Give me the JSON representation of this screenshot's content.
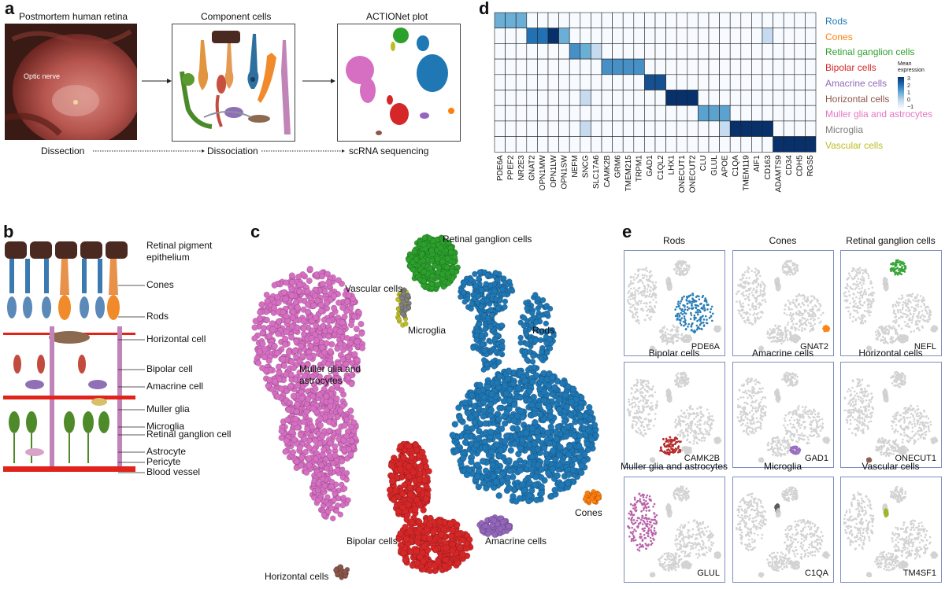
{
  "panel_a": {
    "letter": "a",
    "step1_title": "Postmortem human retina",
    "step2_title": "Component cells",
    "step3_title": "ACTIONet plot",
    "optic_nerve_label": "Optic nerve",
    "step1_caption": "Dissection",
    "step2_caption": "Dissociation",
    "step3_caption": "scRNA sequencing"
  },
  "panel_b": {
    "letter": "b",
    "labels": [
      "Retinal pigment epithelium",
      "Cones",
      "Rods",
      "Horizontal cell",
      "Bipolar cell",
      "Amacrine cell",
      "Muller glia",
      "Microglia",
      "Retinal ganglion cell",
      "Astrocyte",
      "Pericyte",
      "Blood vessel"
    ]
  },
  "panel_c": {
    "letter": "c",
    "clusters": [
      {
        "name": "Retinal ganglion cells",
        "color": "#2ca02c"
      },
      {
        "name": "Vascular cells",
        "color": "#bcbd22"
      },
      {
        "name": "Microglia",
        "color": "#7f7f7f"
      },
      {
        "name": "Rods",
        "color": "#1f77b4"
      },
      {
        "name": "Muller glia and astrocytes",
        "color": "#d66ec2"
      },
      {
        "name": "Cones",
        "color": "#ff7f0e"
      },
      {
        "name": "Bipolar cells",
        "color": "#d62728"
      },
      {
        "name": "Amacrine cells",
        "color": "#9467bd"
      },
      {
        "name": "Horizontal cells",
        "color": "#8c564b"
      }
    ]
  },
  "panel_d": {
    "letter": "d",
    "legend_title": "Mean expression",
    "legend_ticks": [
      "3",
      "2",
      "1",
      "0",
      "−1"
    ]
  },
  "panel_e": {
    "letter": "e",
    "panels": [
      {
        "title": "Rods",
        "gene": "PDE6A",
        "color": "#1f77b4"
      },
      {
        "title": "Cones",
        "gene": "GNAT2",
        "color": "#ff7f0e"
      },
      {
        "title": "Retinal ganglion cells",
        "gene": "NEFL",
        "color": "#2ca02c"
      },
      {
        "title": "Bipolar cells",
        "gene": "CAMK2B",
        "color": "#b22222"
      },
      {
        "title": "Amacrine cells",
        "gene": "GAD1",
        "color": "#9467bd"
      },
      {
        "title": "Horizontal cells",
        "gene": "ONECUT1",
        "color": "#8c564b"
      },
      {
        "title": "Muller glia and astrocytes",
        "gene": "GLUL",
        "color": "#b65aa5"
      },
      {
        "title": "Microglia",
        "gene": "C1QA",
        "color": "#555555"
      },
      {
        "title": "Vascular cells",
        "gene": "TM4SF1",
        "color": "#9ab51f"
      }
    ]
  },
  "chart_data": {
    "type": "heatmap",
    "genes": [
      "PDE6A",
      "PPEF2",
      "NR2E3",
      "GNAT2",
      "OPN1MW",
      "OPN1LW",
      "OPN1SW",
      "NEFM",
      "SNCG",
      "SLC17A6",
      "CAMK2B",
      "GRM6",
      "TMEM215",
      "TRPM1",
      "GAD1",
      "C1QL2",
      "LHX1",
      "ONECUT1",
      "ONECUT2",
      "CLU",
      "GLUL",
      "APOE",
      "C1QA",
      "TMEM119",
      "AIF1",
      "CD163",
      "ADAMTS9",
      "CD34",
      "CDH5",
      "RGS5"
    ],
    "cell_types": [
      {
        "name": "Rods",
        "color": "#1f77b4"
      },
      {
        "name": "Cones",
        "color": "#ff7f0e"
      },
      {
        "name": "Retinal ganglion cells",
        "color": "#2ca02c"
      },
      {
        "name": "Bipolar cells",
        "color": "#d62728"
      },
      {
        "name": "Amacrine cells",
        "color": "#9467bd"
      },
      {
        "name": "Horizontal cells",
        "color": "#8c564b"
      },
      {
        "name": "Muller glia and astrocytes",
        "color": "#e377c2"
      },
      {
        "name": "Microglia",
        "color": "#7f7f7f"
      },
      {
        "name": "Vascular cells",
        "color": "#bcbd22"
      }
    ],
    "values": [
      [
        1,
        1,
        1,
        -1,
        -1,
        -1,
        -1,
        -1,
        -1,
        -1,
        -1,
        -1,
        -1,
        -1,
        -1,
        -1,
        -1,
        -1,
        -1,
        -1,
        -1,
        -1,
        -1,
        -1,
        -1,
        -1,
        -1,
        -1,
        -1,
        -1
      ],
      [
        -1,
        -1,
        -1,
        2,
        2,
        3,
        1,
        -1,
        -1,
        -1,
        -1,
        -1,
        -1,
        -1,
        -1,
        -1,
        -1,
        -1,
        -1,
        -1,
        -1,
        -1,
        -1,
        -1,
        -1,
        0,
        -1,
        -1,
        -1,
        -1
      ],
      [
        -1,
        -1,
        -1,
        -1,
        -1,
        -1,
        -1,
        1.5,
        1,
        0,
        -1,
        -1,
        -1,
        -1,
        -1,
        -1,
        -1,
        -1,
        -1,
        -1,
        -1,
        -1,
        -1,
        -1,
        -1,
        -1,
        -1,
        -1,
        -1,
        -1
      ],
      [
        -1,
        -1,
        -1,
        -1,
        -1,
        -1,
        -1,
        -1,
        -1,
        -1,
        1.5,
        1.5,
        1.5,
        1.5,
        -1,
        -1,
        -1,
        -1,
        -1,
        -1,
        -1,
        -1,
        -1,
        -1,
        -1,
        -1,
        -1,
        -1,
        -1,
        -1
      ],
      [
        -1,
        -1,
        -1,
        -1,
        -1,
        -1,
        -1,
        -1,
        -1,
        -1,
        -1,
        -1,
        -1,
        -1,
        2.5,
        2.5,
        -1,
        -1,
        -1,
        -1,
        -1,
        -1,
        -1,
        -1,
        -1,
        -1,
        -1,
        -1,
        -1,
        -1
      ],
      [
        -1,
        -1,
        -1,
        -1,
        -1,
        -1,
        -1,
        -1,
        0,
        -1,
        -1,
        -1,
        -1,
        -1,
        -1,
        -1,
        3,
        3,
        3,
        -1,
        -1,
        -1,
        -1,
        -1,
        -1,
        -1,
        -1,
        -1,
        -1,
        -1
      ],
      [
        -1,
        -1,
        -1,
        -1,
        -1,
        -1,
        -1,
        -1,
        -1,
        -1,
        -1,
        -1,
        -1,
        -1,
        -1,
        -1,
        -1,
        -1,
        -1,
        1.2,
        1.2,
        1.2,
        -1,
        -1,
        -1,
        -1,
        -1,
        -1,
        -1,
        -1
      ],
      [
        -1,
        -1,
        -1,
        -1,
        -1,
        -1,
        -1,
        -1,
        0,
        -1,
        -1,
        -1,
        -1,
        -1,
        -1,
        -1,
        -1,
        -1,
        -1,
        -1,
        -1,
        0,
        3,
        3,
        3,
        3,
        -1,
        -1,
        -1,
        -1
      ],
      [
        -1,
        -1,
        -1,
        -1,
        -1,
        -1,
        -1,
        -1,
        -1,
        -1,
        -1,
        -1,
        -1,
        -1,
        -1,
        -1,
        -1,
        -1,
        -1,
        -1,
        -1,
        -1,
        -1,
        -1,
        -1,
        -1,
        3,
        3,
        3,
        3
      ]
    ],
    "value_range": [
      -1,
      3
    ]
  }
}
